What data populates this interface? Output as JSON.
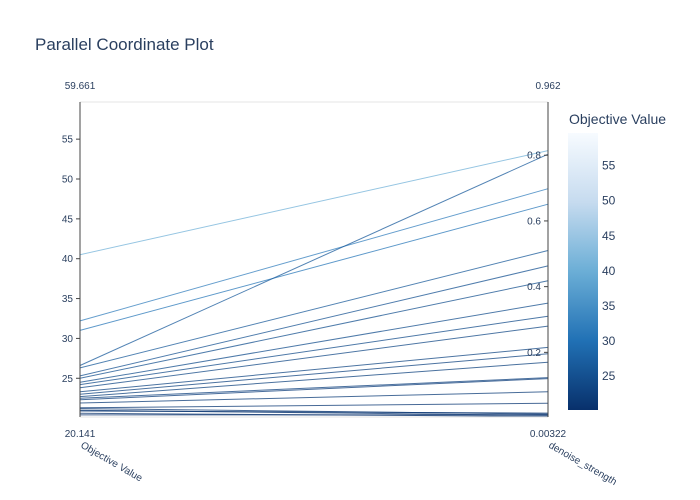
{
  "chart_data": {
    "type": "parallel_coordinates",
    "title": "Parallel Coordinate Plot",
    "dimensions": [
      {
        "name": "Objective Value",
        "range": [
          20.141,
          59.661
        ],
        "range_labels": {
          "max": "59.661",
          "min": "20.141"
        },
        "ticks": [
          25,
          30,
          35,
          40,
          45,
          50,
          55
        ]
      },
      {
        "name": "denoise_strength",
        "range": [
          0.00322,
          0.962
        ],
        "range_labels": {
          "max": "0.962",
          "min": "0.00322"
        },
        "ticks": [
          "0.2",
          "0.4",
          "0.6",
          "0.8"
        ]
      }
    ],
    "lines": [
      {
        "objective": 40.5,
        "denoise": 0.814
      },
      {
        "objective": 32.2,
        "denoise": 0.698
      },
      {
        "objective": 31.0,
        "denoise": 0.651
      },
      {
        "objective": 26.6,
        "denoise": 0.803
      },
      {
        "objective": 26.3,
        "denoise": 0.51
      },
      {
        "objective": 25.3,
        "denoise": 0.463
      },
      {
        "objective": 25.0,
        "denoise": 0.418
      },
      {
        "objective": 24.5,
        "denoise": 0.35
      },
      {
        "objective": 24.2,
        "denoise": 0.31
      },
      {
        "objective": 23.8,
        "denoise": 0.28
      },
      {
        "objective": 23.3,
        "denoise": 0.215
      },
      {
        "objective": 23.0,
        "denoise": 0.196
      },
      {
        "objective": 22.7,
        "denoise": 0.17
      },
      {
        "objective": 22.5,
        "denoise": 0.123
      },
      {
        "objective": 22.3,
        "denoise": 0.12
      },
      {
        "objective": 21.9,
        "denoise": 0.08
      },
      {
        "objective": 21.3,
        "denoise": 0.045
      },
      {
        "objective": 21.2,
        "denoise": 0.012
      },
      {
        "objective": 21.0,
        "denoise": 0.008
      },
      {
        "objective": 20.9,
        "denoise": 0.015
      },
      {
        "objective": 20.6,
        "denoise": 0.005
      },
      {
        "objective": 20.4,
        "denoise": 0.01
      }
    ],
    "colorbar": {
      "title": "Objective Value",
      "range": [
        20.141,
        59.661
      ],
      "ticks": [
        25,
        30,
        35,
        40,
        45,
        50,
        55
      ],
      "colorscale": [
        "#08306b",
        "#2171b5",
        "#6baed6",
        "#c6dbef",
        "#f7fbff"
      ]
    },
    "grid": false,
    "legend": "colorbar-right"
  }
}
